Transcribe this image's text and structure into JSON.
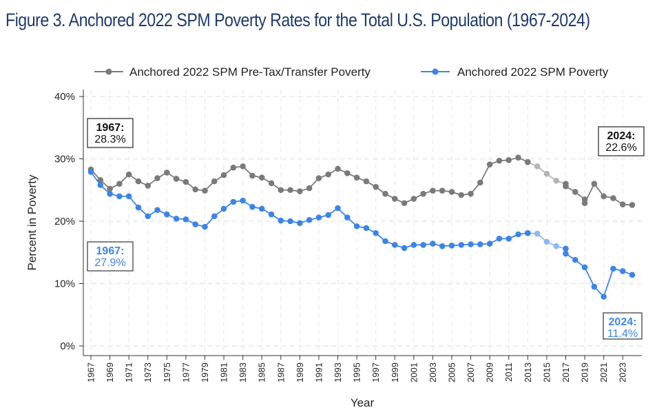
{
  "title": "Figure 3. Anchored 2022 SPM Poverty Rates for the Total U.S. Population (1967-2024)",
  "chart_data": {
    "type": "line",
    "xlabel": "Year",
    "ylabel": "Percent in Poverty",
    "xlim": [
      1967,
      2024
    ],
    "ylim": [
      0,
      40
    ],
    "yticks": [
      {
        "value": 0,
        "label": "0%"
      },
      {
        "value": 10,
        "label": "10%"
      },
      {
        "value": 20,
        "label": "20%"
      },
      {
        "value": 30,
        "label": "30%"
      },
      {
        "value": 40,
        "label": "40%"
      }
    ],
    "xticks": [
      "1967",
      "1969",
      "1971",
      "1973",
      "1975",
      "1977",
      "1979",
      "1981",
      "1983",
      "1985",
      "1987",
      "1989",
      "1991",
      "1993",
      "1995",
      "1997",
      "1999",
      "2001",
      "2003",
      "2005",
      "2007",
      "2009",
      "2011",
      "2013",
      "2015",
      "2017",
      "2019",
      "2021",
      "2023"
    ],
    "grid": true,
    "legend_position": "top",
    "series": [
      {
        "name": "Anchored 2022 SPM Pre-Tax/Transfer Poverty",
        "color": "#7a7a7a",
        "faded_color": "#b5b5b5",
        "points": [
          [
            1967,
            28.3
          ],
          [
            1968,
            26.6
          ],
          [
            1969,
            25.2
          ],
          [
            1970,
            26.0
          ],
          [
            1971,
            27.5
          ],
          [
            1972,
            26.4
          ],
          [
            1973,
            25.7
          ],
          [
            1974,
            26.9
          ],
          [
            1975,
            27.8
          ],
          [
            1976,
            26.8
          ],
          [
            1977,
            26.3
          ],
          [
            1978,
            25.1
          ],
          [
            1979,
            24.9
          ],
          [
            1980,
            26.4
          ],
          [
            1981,
            27.4
          ],
          [
            1982,
            28.6
          ],
          [
            1983,
            28.8
          ],
          [
            1984,
            27.3
          ],
          [
            1985,
            27.0
          ],
          [
            1986,
            26.1
          ],
          [
            1987,
            25.0
          ],
          [
            1988,
            25.0
          ],
          [
            1989,
            24.8
          ],
          [
            1990,
            25.3
          ],
          [
            1991,
            26.9
          ],
          [
            1992,
            27.5
          ],
          [
            1993,
            28.4
          ],
          [
            1994,
            27.7
          ],
          [
            1995,
            27.0
          ],
          [
            1996,
            26.4
          ],
          [
            1997,
            25.5
          ],
          [
            1998,
            24.4
          ],
          [
            1999,
            23.6
          ],
          [
            2000,
            22.9
          ],
          [
            2001,
            23.6
          ],
          [
            2002,
            24.4
          ],
          [
            2003,
            24.9
          ],
          [
            2004,
            24.9
          ],
          [
            2005,
            24.7
          ],
          [
            2006,
            24.2
          ],
          [
            2007,
            24.4
          ],
          [
            2008,
            26.2
          ],
          [
            2009,
            29.1
          ],
          [
            2010,
            29.7
          ],
          [
            2011,
            29.8
          ],
          [
            2012,
            30.2
          ],
          [
            2013,
            29.5
          ],
          [
            2013,
            29.5
          ],
          [
            2014,
            28.8
          ],
          [
            2015,
            27.6
          ],
          [
            2016,
            26.5
          ],
          [
            2017,
            26.0
          ],
          [
            2017,
            25.6
          ],
          [
            2018,
            24.7
          ],
          [
            2019,
            23.5
          ],
          [
            2019,
            22.9
          ],
          [
            2020,
            26.0
          ],
          [
            2021,
            24.0
          ],
          [
            2022,
            23.7
          ],
          [
            2023,
            22.7
          ],
          [
            2024,
            22.6
          ]
        ],
        "faded_segment": [
          2013,
          2017
        ],
        "annotations": [
          {
            "year": 1967,
            "label": "1967:",
            "value": "28.3%"
          },
          {
            "year": 2024,
            "label": "2024:",
            "value": "22.6%"
          }
        ]
      },
      {
        "name": "Anchored 2022 SPM Poverty",
        "color": "#3d84e8",
        "faded_color": "#8fb8f2",
        "points": [
          [
            1967,
            27.9
          ],
          [
            1968,
            25.8
          ],
          [
            1969,
            24.4
          ],
          [
            1970,
            24.0
          ],
          [
            1971,
            24.0
          ],
          [
            1972,
            22.2
          ],
          [
            1973,
            20.8
          ],
          [
            1974,
            21.8
          ],
          [
            1975,
            21.1
          ],
          [
            1976,
            20.4
          ],
          [
            1977,
            20.3
          ],
          [
            1978,
            19.5
          ],
          [
            1979,
            19.1
          ],
          [
            1980,
            20.8
          ],
          [
            1981,
            22.0
          ],
          [
            1982,
            23.1
          ],
          [
            1983,
            23.3
          ],
          [
            1984,
            22.3
          ],
          [
            1985,
            22.0
          ],
          [
            1986,
            21.1
          ],
          [
            1987,
            20.1
          ],
          [
            1988,
            20.0
          ],
          [
            1989,
            19.7
          ],
          [
            1990,
            20.2
          ],
          [
            1991,
            20.6
          ],
          [
            1992,
            21.0
          ],
          [
            1993,
            22.1
          ],
          [
            1994,
            20.6
          ],
          [
            1995,
            19.2
          ],
          [
            1996,
            18.9
          ],
          [
            1997,
            18.1
          ],
          [
            1998,
            16.8
          ],
          [
            1999,
            16.2
          ],
          [
            2000,
            15.7
          ],
          [
            2001,
            16.2
          ],
          [
            2002,
            16.2
          ],
          [
            2003,
            16.4
          ],
          [
            2004,
            16.0
          ],
          [
            2005,
            16.1
          ],
          [
            2006,
            16.2
          ],
          [
            2007,
            16.3
          ],
          [
            2008,
            16.3
          ],
          [
            2009,
            16.4
          ],
          [
            2010,
            17.2
          ],
          [
            2011,
            17.2
          ],
          [
            2012,
            17.9
          ],
          [
            2013,
            18.1
          ],
          [
            2013,
            18.1
          ],
          [
            2014,
            18.0
          ],
          [
            2015,
            16.7
          ],
          [
            2016,
            16.0
          ],
          [
            2017,
            15.6
          ],
          [
            2017,
            14.8
          ],
          [
            2018,
            13.8
          ],
          [
            2019,
            12.6
          ],
          [
            2020,
            9.5
          ],
          [
            2021,
            7.9
          ],
          [
            2022,
            12.4
          ],
          [
            2023,
            12.0
          ],
          [
            2024,
            11.4
          ]
        ],
        "faded_segment": [
          2013,
          2017
        ],
        "annotations": [
          {
            "year": 1967,
            "label": "1967:",
            "value": "27.9%"
          },
          {
            "year": 2024,
            "label": "2024:",
            "value": "11.4%"
          }
        ]
      }
    ]
  }
}
